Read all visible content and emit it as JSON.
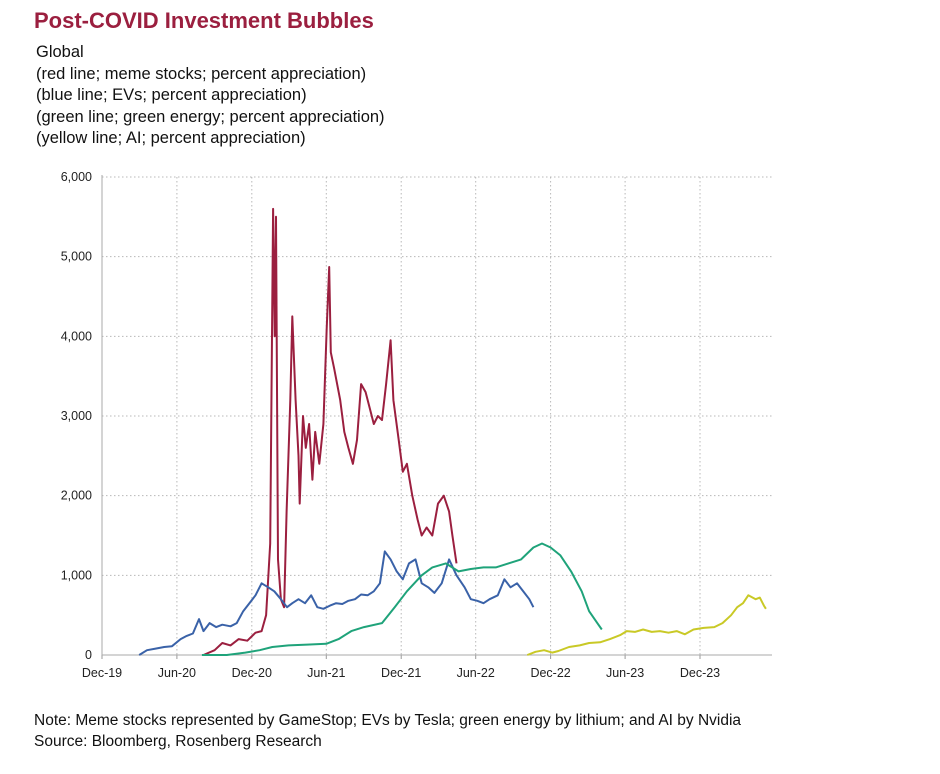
{
  "title": "Post-COVID Investment Bubbles",
  "subtitle_lines": [
    "Global",
    "(red line; meme stocks; percent appreciation)",
    "(blue line; EVs; percent appreciation)",
    "(green line; green energy; percent appreciation)",
    "(yellow line; AI; percent appreciation)"
  ],
  "notes": [
    "Note: Meme stocks represented by GameStop; EVs by Tesla; green energy by lithium; and AI by Nvidia",
    "Source: Bloomberg, Rosenberg Research"
  ],
  "chart_data": {
    "type": "line",
    "ylim": [
      0,
      6000
    ],
    "y_ticks": [
      "0",
      "1,000",
      "2,000",
      "3,000",
      "4,000",
      "5,000",
      "6,000"
    ],
    "x_range": [
      "2019-12-01",
      "2024-06-15"
    ],
    "x_ticks": [
      "Dec-19",
      "Jun-20",
      "Dec-20",
      "Jun-21",
      "Dec-21",
      "Jun-22",
      "Dec-22",
      "Jun-23",
      "Dec-23"
    ],
    "grid": true,
    "series": [
      {
        "color": "#9b1f3f",
        "points": [
          [
            "2020-08-05",
            0
          ],
          [
            "2020-09-01",
            60
          ],
          [
            "2020-09-20",
            150
          ],
          [
            "2020-10-10",
            120
          ],
          [
            "2020-10-30",
            200
          ],
          [
            "2020-11-20",
            180
          ],
          [
            "2020-12-10",
            280
          ],
          [
            "2020-12-25",
            300
          ],
          [
            "2021-01-05",
            500
          ],
          [
            "2021-01-15",
            1400
          ],
          [
            "2021-01-22",
            5600
          ],
          [
            "2021-01-26",
            4000
          ],
          [
            "2021-01-29",
            5500
          ],
          [
            "2021-02-03",
            1200
          ],
          [
            "2021-02-10",
            700
          ],
          [
            "2021-02-18",
            600
          ],
          [
            "2021-02-24",
            1800
          ],
          [
            "2021-03-05",
            3200
          ],
          [
            "2021-03-10",
            4250
          ],
          [
            "2021-03-18",
            3200
          ],
          [
            "2021-03-25",
            2500
          ],
          [
            "2021-03-28",
            1900
          ],
          [
            "2021-04-05",
            3000
          ],
          [
            "2021-04-12",
            2600
          ],
          [
            "2021-04-20",
            2900
          ],
          [
            "2021-04-28",
            2200
          ],
          [
            "2021-05-05",
            2800
          ],
          [
            "2021-05-15",
            2400
          ],
          [
            "2021-05-25",
            2900
          ],
          [
            "2021-06-02",
            4100
          ],
          [
            "2021-06-08",
            4870
          ],
          [
            "2021-06-12",
            3800
          ],
          [
            "2021-06-20",
            3600
          ],
          [
            "2021-07-05",
            3200
          ],
          [
            "2021-07-15",
            2800
          ],
          [
            "2021-07-25",
            2600
          ],
          [
            "2021-08-05",
            2400
          ],
          [
            "2021-08-15",
            2700
          ],
          [
            "2021-08-25",
            3400
          ],
          [
            "2021-09-05",
            3300
          ],
          [
            "2021-09-15",
            3100
          ],
          [
            "2021-09-25",
            2900
          ],
          [
            "2021-10-05",
            3000
          ],
          [
            "2021-10-15",
            2950
          ],
          [
            "2021-10-25",
            3400
          ],
          [
            "2021-11-05",
            3950
          ],
          [
            "2021-11-12",
            3200
          ],
          [
            "2021-11-25",
            2700
          ],
          [
            "2021-12-05",
            2300
          ],
          [
            "2021-12-15",
            2400
          ],
          [
            "2021-12-28",
            2000
          ],
          [
            "2022-01-10",
            1700
          ],
          [
            "2022-01-20",
            1500
          ],
          [
            "2022-02-01",
            1600
          ],
          [
            "2022-02-15",
            1500
          ],
          [
            "2022-03-01",
            1900
          ],
          [
            "2022-03-15",
            2000
          ],
          [
            "2022-03-28",
            1800
          ],
          [
            "2022-04-05",
            1500
          ],
          [
            "2022-04-15",
            1150
          ]
        ]
      },
      {
        "color": "#3a62a8",
        "points": [
          [
            "2020-03-01",
            0
          ],
          [
            "2020-03-20",
            60
          ],
          [
            "2020-04-10",
            80
          ],
          [
            "2020-05-01",
            100
          ],
          [
            "2020-05-20",
            110
          ],
          [
            "2020-06-10",
            200
          ],
          [
            "2020-06-25",
            240
          ],
          [
            "2020-07-10",
            270
          ],
          [
            "2020-07-25",
            450
          ],
          [
            "2020-08-05",
            300
          ],
          [
            "2020-08-20",
            400
          ],
          [
            "2020-09-05",
            350
          ],
          [
            "2020-09-20",
            380
          ],
          [
            "2020-10-10",
            360
          ],
          [
            "2020-10-25",
            400
          ],
          [
            "2020-11-10",
            550
          ],
          [
            "2020-11-25",
            650
          ],
          [
            "2020-12-10",
            750
          ],
          [
            "2020-12-25",
            900
          ],
          [
            "2021-01-10",
            850
          ],
          [
            "2021-01-25",
            800
          ],
          [
            "2021-02-10",
            700
          ],
          [
            "2021-02-25",
            600
          ],
          [
            "2021-03-10",
            650
          ],
          [
            "2021-03-25",
            700
          ],
          [
            "2021-04-10",
            650
          ],
          [
            "2021-04-25",
            750
          ],
          [
            "2021-05-10",
            600
          ],
          [
            "2021-05-25",
            580
          ],
          [
            "2021-06-10",
            620
          ],
          [
            "2021-06-25",
            650
          ],
          [
            "2021-07-10",
            640
          ],
          [
            "2021-07-25",
            680
          ],
          [
            "2021-08-10",
            700
          ],
          [
            "2021-08-25",
            760
          ],
          [
            "2021-09-10",
            750
          ],
          [
            "2021-09-25",
            800
          ],
          [
            "2021-10-10",
            900
          ],
          [
            "2021-10-22",
            1300
          ],
          [
            "2021-11-05",
            1200
          ],
          [
            "2021-11-20",
            1050
          ],
          [
            "2021-12-05",
            950
          ],
          [
            "2021-12-20",
            1150
          ],
          [
            "2022-01-05",
            1200
          ],
          [
            "2022-01-20",
            900
          ],
          [
            "2022-02-05",
            850
          ],
          [
            "2022-02-20",
            780
          ],
          [
            "2022-03-10",
            900
          ],
          [
            "2022-03-28",
            1200
          ],
          [
            "2022-04-15",
            1000
          ],
          [
            "2022-05-05",
            850
          ],
          [
            "2022-05-20",
            700
          ],
          [
            "2022-06-05",
            680
          ],
          [
            "2022-06-20",
            650
          ],
          [
            "2022-07-05",
            700
          ],
          [
            "2022-07-25",
            750
          ],
          [
            "2022-08-10",
            950
          ],
          [
            "2022-08-25",
            850
          ],
          [
            "2022-09-10",
            900
          ],
          [
            "2022-09-25",
            800
          ],
          [
            "2022-10-10",
            700
          ],
          [
            "2022-10-20",
            600
          ]
        ]
      },
      {
        "color": "#1fa37a",
        "points": [
          [
            "2020-08-01",
            0
          ],
          [
            "2020-10-01",
            0
          ],
          [
            "2020-11-15",
            30
          ],
          [
            "2020-12-20",
            60
          ],
          [
            "2021-01-20",
            100
          ],
          [
            "2021-03-01",
            120
          ],
          [
            "2021-04-15",
            130
          ],
          [
            "2021-06-01",
            140
          ],
          [
            "2021-07-01",
            200
          ],
          [
            "2021-08-01",
            300
          ],
          [
            "2021-09-01",
            350
          ],
          [
            "2021-10-15",
            400
          ],
          [
            "2021-11-15",
            600
          ],
          [
            "2021-12-15",
            800
          ],
          [
            "2022-01-20",
            1000
          ],
          [
            "2022-02-15",
            1100
          ],
          [
            "2022-03-20",
            1150
          ],
          [
            "2022-04-20",
            1050
          ],
          [
            "2022-05-20",
            1080
          ],
          [
            "2022-06-20",
            1100
          ],
          [
            "2022-07-20",
            1100
          ],
          [
            "2022-08-20",
            1150
          ],
          [
            "2022-09-20",
            1200
          ],
          [
            "2022-10-20",
            1350
          ],
          [
            "2022-11-10",
            1400
          ],
          [
            "2022-12-01",
            1350
          ],
          [
            "2022-12-25",
            1250
          ],
          [
            "2023-01-20",
            1050
          ],
          [
            "2023-02-15",
            800
          ],
          [
            "2023-03-05",
            550
          ],
          [
            "2023-03-25",
            400
          ],
          [
            "2023-04-05",
            320
          ]
        ]
      },
      {
        "color": "#c9c926",
        "points": [
          [
            "2022-10-05",
            0
          ],
          [
            "2022-10-25",
            40
          ],
          [
            "2022-11-15",
            60
          ],
          [
            "2022-12-05",
            30
          ],
          [
            "2022-12-20",
            50
          ],
          [
            "2023-01-15",
            100
          ],
          [
            "2023-02-10",
            120
          ],
          [
            "2023-03-05",
            150
          ],
          [
            "2023-04-01",
            160
          ],
          [
            "2023-04-25",
            200
          ],
          [
            "2023-05-20",
            250
          ],
          [
            "2023-06-05",
            300
          ],
          [
            "2023-06-25",
            290
          ],
          [
            "2023-07-15",
            320
          ],
          [
            "2023-08-05",
            290
          ],
          [
            "2023-08-25",
            300
          ],
          [
            "2023-09-15",
            280
          ],
          [
            "2023-10-05",
            300
          ],
          [
            "2023-10-25",
            260
          ],
          [
            "2023-11-15",
            320
          ],
          [
            "2023-12-10",
            340
          ],
          [
            "2024-01-05",
            350
          ],
          [
            "2024-01-25",
            400
          ],
          [
            "2024-02-15",
            500
          ],
          [
            "2024-03-01",
            600
          ],
          [
            "2024-03-15",
            650
          ],
          [
            "2024-03-28",
            750
          ],
          [
            "2024-04-15",
            700
          ],
          [
            "2024-04-25",
            720
          ],
          [
            "2024-05-05",
            620
          ],
          [
            "2024-05-10",
            580
          ]
        ]
      }
    ]
  }
}
